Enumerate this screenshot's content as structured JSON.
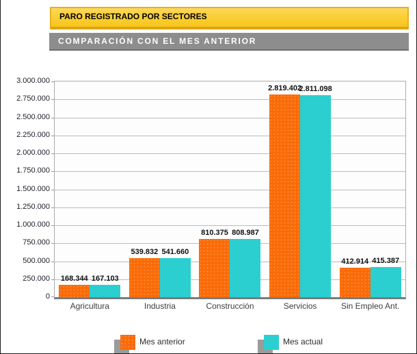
{
  "header": {
    "title": "PARO REGISTRADO POR SECTORES",
    "subtitle": "COMPARACIÓN CON EL MES ANTERIOR"
  },
  "theme": {
    "title_bar_bg": "#fbcf35",
    "title_bar_border": "#e8b01d",
    "subtitle_bar_bg": "#8d8d8d",
    "series_prev_color": "#fa6a07",
    "series_curr_color": "#2bcfd0",
    "legend_shadow_color": "#9b9b9b"
  },
  "chart_data": {
    "type": "bar",
    "title": "PARO REGISTRADO POR SECTORES",
    "subtitle": "COMPARACIÓN CON EL MES ANTERIOR",
    "categories": [
      "Agricultura",
      "Industria",
      "Construcción",
      "Servicios",
      "Sin Empleo Ant."
    ],
    "series": [
      {
        "name": "Mes anterior",
        "color": "#fa6a07",
        "values": [
          168344,
          539832,
          810375,
          2819402,
          412914
        ],
        "labels": [
          "168.344",
          "539.832",
          "810.375",
          "2.819.402",
          "412.914"
        ]
      },
      {
        "name": "Mes actual",
        "color": "#2bcfd0",
        "values": [
          167103,
          541660,
          808987,
          2811098,
          415387
        ],
        "labels": [
          "167.103",
          "541.660",
          "808.987",
          "2.811.098",
          "415.387"
        ]
      }
    ],
    "xlabel": "",
    "ylabel": "",
    "ylim": [
      0,
      3000000
    ],
    "ytick_step": 250000,
    "yticks": [
      "0",
      "250.000",
      "500.000",
      "750.000",
      "1.000.000",
      "1.250.000",
      "1.500.000",
      "1.750.000",
      "2.000.000",
      "2.250.000",
      "2.500.000",
      "2.750.000",
      "3.000.000"
    ],
    "grid": true,
    "legend_position": "bottom"
  }
}
